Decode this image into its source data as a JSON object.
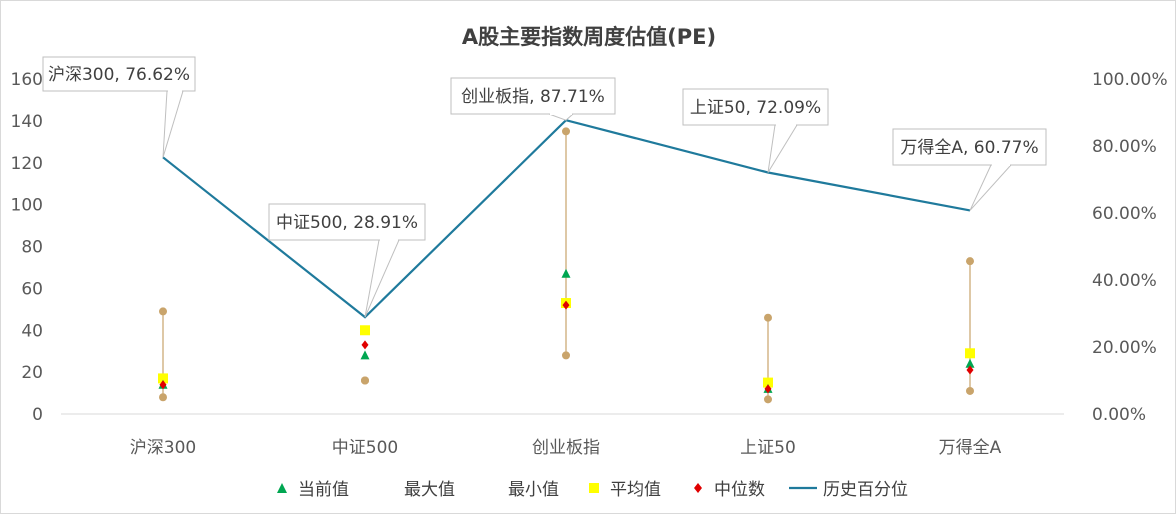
{
  "chart_data": {
    "type": "line",
    "title": "A股主要指数周度估值(PE)",
    "categories": [
      "沪深300",
      "中证500",
      "创业板指",
      "上证50",
      "万得全A"
    ],
    "ylim_left": [
      0,
      160
    ],
    "yticks_left": [
      0,
      20,
      40,
      60,
      80,
      100,
      120,
      140,
      160
    ],
    "ylim_right": [
      0,
      100
    ],
    "yticks_right_labels": [
      "0.00%",
      "20.00%",
      "40.00%",
      "60.00%",
      "80.00%",
      "100.00%"
    ],
    "series": [
      {
        "name": "当前值",
        "axis": "left",
        "marker": "triangle",
        "color": "#00a651",
        "values": [
          14,
          28,
          67,
          12,
          24
        ]
      },
      {
        "name": "最大值",
        "axis": "left",
        "marker": "circle",
        "color": "#c9a46b",
        "values": [
          49,
          16,
          135,
          46,
          73
        ]
      },
      {
        "name": "最小值",
        "axis": "left",
        "marker": "circle",
        "color": "#c9a46b",
        "values": [
          8,
          16,
          28,
          7,
          11
        ]
      },
      {
        "name": "平均值",
        "axis": "left",
        "marker": "square",
        "color": "#ffff00",
        "values": [
          17,
          40,
          53,
          15,
          29
        ]
      },
      {
        "name": "中位数",
        "axis": "left",
        "marker": "diamond",
        "color": "#e00000",
        "values": [
          14,
          33,
          52,
          12,
          21
        ]
      },
      {
        "name": "历史百分位",
        "axis": "right",
        "marker": "line",
        "color": "#1f7a9c",
        "values": [
          76.62,
          28.91,
          87.71,
          72.09,
          60.77
        ]
      }
    ],
    "range_bar": {
      "color": "#c9a46b"
    },
    "annotations": [
      "沪深300, 76.62%",
      "中证500, 28.91%",
      "创业板指, 87.71%",
      "上证50, 72.09%",
      "万得全A, 60.77%"
    ],
    "legend_position": "bottom"
  }
}
